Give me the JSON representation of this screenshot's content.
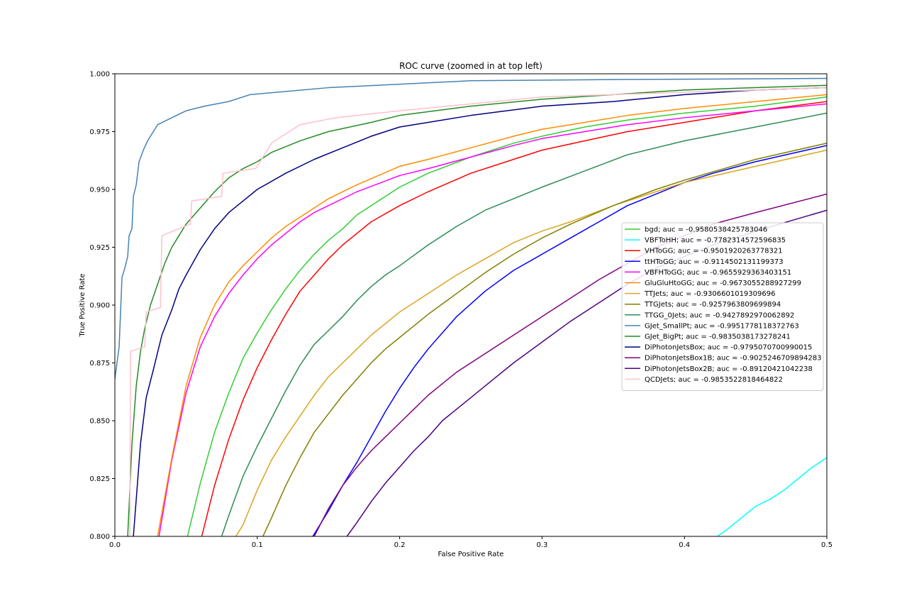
{
  "chart_data": {
    "type": "line",
    "title": "ROC curve (zoomed in at top left)",
    "xlabel": "False Positive Rate",
    "ylabel": "True Positive Rate",
    "xlim": [
      0,
      0.5
    ],
    "ylim": [
      0.8,
      1.0
    ],
    "xticks": [
      "0.0",
      "0.1",
      "0.2",
      "0.3",
      "0.4",
      "0.5"
    ],
    "yticks": [
      "0.800",
      "0.825",
      "0.850",
      "0.875",
      "0.900",
      "0.925",
      "0.950",
      "0.975",
      "1.000"
    ],
    "grid": false,
    "legend_position": "center-right",
    "series": [
      {
        "name": "bgd; auc = -0.9580538425783046",
        "color": "#32cd32",
        "x": [
          0.051,
          0.06,
          0.07,
          0.08,
          0.09,
          0.1,
          0.11,
          0.12,
          0.13,
          0.14,
          0.15,
          0.16,
          0.17,
          0.18,
          0.2,
          0.22,
          0.25,
          0.28,
          0.3,
          0.33,
          0.36,
          0.4,
          0.45,
          0.5
        ],
        "y": [
          0.8,
          0.823,
          0.845,
          0.862,
          0.877,
          0.888,
          0.898,
          0.907,
          0.915,
          0.922,
          0.928,
          0.933,
          0.939,
          0.943,
          0.951,
          0.957,
          0.964,
          0.97,
          0.973,
          0.977,
          0.98,
          0.983,
          0.986,
          0.99
        ]
      },
      {
        "name": "VBFToHH; auc = -0.7782314572596835",
        "color": "#00ffff",
        "x": [
          0.423,
          0.43,
          0.44,
          0.45,
          0.46,
          0.47,
          0.48,
          0.49,
          0.5
        ],
        "y": [
          0.8,
          0.803,
          0.808,
          0.813,
          0.816,
          0.82,
          0.825,
          0.83,
          0.834
        ]
      },
      {
        "name": "VHToGG; auc = -0.9501920263778321",
        "color": "#ff0000",
        "x": [
          0.061,
          0.07,
          0.08,
          0.09,
          0.1,
          0.11,
          0.12,
          0.13,
          0.14,
          0.15,
          0.16,
          0.17,
          0.18,
          0.2,
          0.22,
          0.25,
          0.28,
          0.3,
          0.33,
          0.36,
          0.4,
          0.45,
          0.5
        ],
        "y": [
          0.8,
          0.822,
          0.842,
          0.859,
          0.873,
          0.885,
          0.896,
          0.906,
          0.913,
          0.92,
          0.926,
          0.931,
          0.936,
          0.943,
          0.949,
          0.957,
          0.963,
          0.967,
          0.971,
          0.975,
          0.979,
          0.984,
          0.988
        ]
      },
      {
        "name": "ttHToGG; auc = -0.9114502131199373",
        "color": "#0000ff",
        "x": [
          0.139,
          0.15,
          0.16,
          0.17,
          0.18,
          0.19,
          0.2,
          0.21,
          0.22,
          0.23,
          0.24,
          0.26,
          0.28,
          0.3,
          0.32,
          0.34,
          0.36,
          0.38,
          0.4,
          0.42,
          0.45,
          0.5
        ],
        "y": [
          0.8,
          0.811,
          0.822,
          0.832,
          0.843,
          0.854,
          0.864,
          0.873,
          0.881,
          0.888,
          0.895,
          0.906,
          0.915,
          0.922,
          0.929,
          0.936,
          0.943,
          0.948,
          0.953,
          0.957,
          0.962,
          0.969
        ]
      },
      {
        "name": "VBFHToGG; auc = -0.9655929363403151",
        "color": "#ff00ff",
        "x": [
          0.031,
          0.04,
          0.05,
          0.06,
          0.07,
          0.08,
          0.09,
          0.1,
          0.11,
          0.12,
          0.13,
          0.14,
          0.15,
          0.17,
          0.2,
          0.22,
          0.25,
          0.28,
          0.3,
          0.33,
          0.36,
          0.4,
          0.45,
          0.5
        ],
        "y": [
          0.8,
          0.833,
          0.862,
          0.882,
          0.895,
          0.905,
          0.913,
          0.92,
          0.926,
          0.931,
          0.936,
          0.94,
          0.943,
          0.949,
          0.956,
          0.959,
          0.964,
          0.969,
          0.972,
          0.975,
          0.978,
          0.981,
          0.984,
          0.987
        ]
      },
      {
        "name": "GluGluHtoGG; auc = -0.9673055288927299",
        "color": "#ff8c00",
        "x": [
          0.03,
          0.04,
          0.05,
          0.06,
          0.07,
          0.08,
          0.09,
          0.1,
          0.11,
          0.12,
          0.13,
          0.14,
          0.15,
          0.17,
          0.2,
          0.22,
          0.25,
          0.28,
          0.3,
          0.33,
          0.36,
          0.4,
          0.45,
          0.5
        ],
        "y": [
          0.8,
          0.834,
          0.865,
          0.886,
          0.9,
          0.91,
          0.917,
          0.923,
          0.929,
          0.934,
          0.938,
          0.942,
          0.946,
          0.952,
          0.96,
          0.963,
          0.968,
          0.973,
          0.976,
          0.979,
          0.982,
          0.985,
          0.988,
          0.991
        ]
      },
      {
        "name": "TTJets; auc = -0.9306601019309696",
        "color": "#daa520",
        "x": [
          0.085,
          0.09,
          0.1,
          0.11,
          0.12,
          0.13,
          0.14,
          0.15,
          0.16,
          0.17,
          0.18,
          0.2,
          0.22,
          0.24,
          0.26,
          0.28,
          0.3,
          0.32,
          0.35,
          0.38,
          0.4,
          0.45,
          0.5
        ],
        "y": [
          0.8,
          0.805,
          0.82,
          0.833,
          0.843,
          0.852,
          0.861,
          0.869,
          0.875,
          0.881,
          0.887,
          0.897,
          0.905,
          0.913,
          0.92,
          0.927,
          0.932,
          0.936,
          0.943,
          0.949,
          0.953,
          0.96,
          0.967
        ]
      },
      {
        "name": "TTGJets; auc = -0.9257963809699894",
        "color": "#808000",
        "x": [
          0.104,
          0.11,
          0.12,
          0.13,
          0.14,
          0.15,
          0.16,
          0.17,
          0.18,
          0.19,
          0.2,
          0.22,
          0.24,
          0.26,
          0.28,
          0.3,
          0.32,
          0.35,
          0.38,
          0.4,
          0.45,
          0.5
        ],
        "y": [
          0.8,
          0.808,
          0.822,
          0.834,
          0.845,
          0.853,
          0.861,
          0.868,
          0.875,
          0.881,
          0.886,
          0.896,
          0.905,
          0.914,
          0.922,
          0.929,
          0.935,
          0.943,
          0.95,
          0.954,
          0.963,
          0.97
        ]
      },
      {
        "name": "TTGG_0Jets; auc = -0.9427892970062892",
        "color": "#2e8b57",
        "x": [
          0.075,
          0.08,
          0.09,
          0.1,
          0.11,
          0.12,
          0.13,
          0.14,
          0.15,
          0.16,
          0.17,
          0.18,
          0.19,
          0.2,
          0.22,
          0.24,
          0.26,
          0.28,
          0.3,
          0.33,
          0.36,
          0.4,
          0.45,
          0.5
        ],
        "y": [
          0.8,
          0.809,
          0.826,
          0.839,
          0.851,
          0.863,
          0.874,
          0.883,
          0.889,
          0.895,
          0.902,
          0.908,
          0.913,
          0.917,
          0.926,
          0.934,
          0.941,
          0.946,
          0.951,
          0.958,
          0.965,
          0.971,
          0.977,
          0.983
        ]
      },
      {
        "name": "GJet_SmallPt; auc = -0.9951778118372763",
        "color": "#4682b4",
        "x": [
          0.0,
          0.003,
          0.005,
          0.007,
          0.009,
          0.01,
          0.012,
          0.013,
          0.015,
          0.017,
          0.02,
          0.023,
          0.026,
          0.03,
          0.04,
          0.05,
          0.063,
          0.08,
          0.095,
          0.15,
          0.25,
          0.35,
          0.5
        ],
        "y": [
          0.868,
          0.882,
          0.912,
          0.916,
          0.921,
          0.93,
          0.933,
          0.947,
          0.952,
          0.962,
          0.967,
          0.971,
          0.974,
          0.978,
          0.981,
          0.984,
          0.986,
          0.988,
          0.991,
          0.994,
          0.997,
          0.9975,
          0.998
        ]
      },
      {
        "name": "GJet_BigPt; auc = -0.9835038173278241",
        "color": "#228b22",
        "x": [
          0.009,
          0.012,
          0.015,
          0.018,
          0.021,
          0.025,
          0.03,
          0.035,
          0.04,
          0.045,
          0.05,
          0.06,
          0.07,
          0.08,
          0.09,
          0.1,
          0.11,
          0.13,
          0.15,
          0.18,
          0.2,
          0.25,
          0.3,
          0.35,
          0.4,
          0.45,
          0.5
        ],
        "y": [
          0.8,
          0.84,
          0.865,
          0.88,
          0.89,
          0.9,
          0.909,
          0.918,
          0.925,
          0.93,
          0.935,
          0.942,
          0.949,
          0.955,
          0.959,
          0.962,
          0.966,
          0.971,
          0.975,
          0.979,
          0.982,
          0.986,
          0.989,
          0.991,
          0.993,
          0.994,
          0.995
        ]
      },
      {
        "name": "DiPhotonJetsBox; auc = -0.9795070700990015",
        "color": "#000080",
        "x": [
          0.013,
          0.018,
          0.022,
          0.027,
          0.033,
          0.04,
          0.045,
          0.05,
          0.06,
          0.07,
          0.08,
          0.09,
          0.1,
          0.12,
          0.14,
          0.16,
          0.18,
          0.2,
          0.22,
          0.25,
          0.3,
          0.35,
          0.4,
          0.45,
          0.5
        ],
        "y": [
          0.8,
          0.84,
          0.86,
          0.872,
          0.887,
          0.898,
          0.907,
          0.913,
          0.924,
          0.933,
          0.94,
          0.945,
          0.95,
          0.957,
          0.963,
          0.968,
          0.973,
          0.977,
          0.979,
          0.982,
          0.986,
          0.988,
          0.991,
          0.993,
          0.994
        ]
      },
      {
        "name": "DiPhotonJetsBox1B; auc = -0.9025246709894283",
        "color": "#800080",
        "x": [
          0.14,
          0.15,
          0.16,
          0.17,
          0.18,
          0.19,
          0.2,
          0.21,
          0.22,
          0.23,
          0.24,
          0.26,
          0.28,
          0.3,
          0.32,
          0.34,
          0.36,
          0.38,
          0.4,
          0.42,
          0.45,
          0.5
        ],
        "y": [
          0.8,
          0.812,
          0.822,
          0.83,
          0.837,
          0.843,
          0.849,
          0.855,
          0.861,
          0.866,
          0.871,
          0.879,
          0.887,
          0.895,
          0.903,
          0.911,
          0.918,
          0.925,
          0.93,
          0.935,
          0.94,
          0.948
        ]
      },
      {
        "name": "DiPhotonJetsBox2B; auc = -0.89120421042238",
        "color": "#4b0082",
        "x": [
          0.163,
          0.17,
          0.18,
          0.19,
          0.2,
          0.21,
          0.22,
          0.23,
          0.24,
          0.25,
          0.26,
          0.28,
          0.3,
          0.32,
          0.34,
          0.36,
          0.38,
          0.4,
          0.42,
          0.45,
          0.5
        ],
        "y": [
          0.8,
          0.806,
          0.815,
          0.823,
          0.83,
          0.837,
          0.843,
          0.85,
          0.855,
          0.86,
          0.865,
          0.875,
          0.884,
          0.893,
          0.901,
          0.909,
          0.916,
          0.921,
          0.926,
          0.932,
          0.941
        ]
      },
      {
        "name": "QCDJets; auc = -0.9853522818464822",
        "color": "#ffc0cb",
        "step": true,
        "x": [
          0.0105,
          0.011,
          0.021,
          0.022,
          0.032,
          0.033,
          0.053,
          0.054,
          0.075,
          0.076,
          0.098,
          0.099,
          0.11,
          0.12,
          0.13,
          0.155,
          0.2,
          0.3,
          0.4,
          0.5
        ],
        "y": [
          0.8,
          0.88,
          0.882,
          0.897,
          0.899,
          0.93,
          0.935,
          0.945,
          0.947,
          0.957,
          0.959,
          0.959,
          0.97,
          0.974,
          0.978,
          0.981,
          0.984,
          0.99,
          0.992,
          0.994
        ]
      }
    ]
  }
}
